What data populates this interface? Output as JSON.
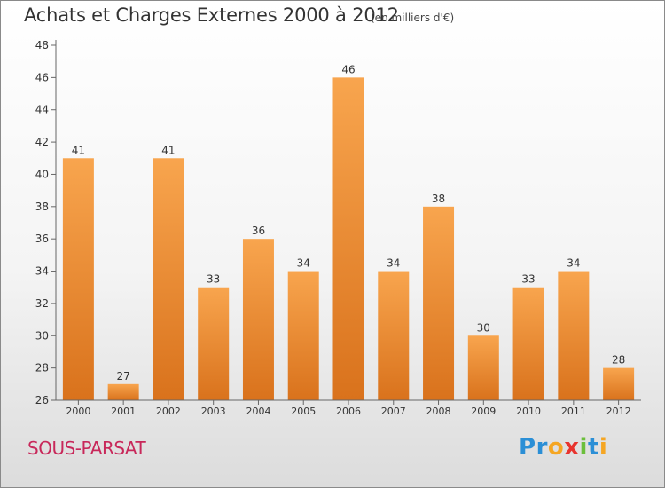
{
  "header": {
    "title": "Achats et Charges Externes 2000 à 2012",
    "subtitle": "(en milliers d'€)"
  },
  "place_name": "SOUS-PARSAT",
  "logo": {
    "letters": [
      {
        "char": "P",
        "color": "#2b8fd6"
      },
      {
        "char": "r",
        "color": "#2b8fd6"
      },
      {
        "char": "o",
        "color": "#f5a623"
      },
      {
        "char": "x",
        "color": "#e8342e"
      },
      {
        "char": "i",
        "color": "#6cbf3c"
      },
      {
        "char": "t",
        "color": "#2b8fd6"
      },
      {
        "char": "i",
        "color": "#f5a623"
      }
    ]
  },
  "colors": {
    "bar_top": "#f8a54e",
    "bar_bottom": "#d9721c",
    "axis": "#666666",
    "label": "#333333"
  },
  "chart_data": {
    "type": "bar",
    "categories": [
      "2000",
      "2001",
      "2002",
      "2003",
      "2004",
      "2005",
      "2006",
      "2007",
      "2008",
      "2009",
      "2010",
      "2011",
      "2012"
    ],
    "values": [
      41,
      27,
      41,
      33,
      36,
      34,
      46,
      34,
      38,
      30,
      33,
      34,
      28
    ],
    "yticks": [
      26,
      28,
      30,
      32,
      34,
      36,
      38,
      40,
      42,
      44,
      46,
      48
    ],
    "ylim": [
      26,
      48
    ],
    "grid": false,
    "legend": "none"
  }
}
